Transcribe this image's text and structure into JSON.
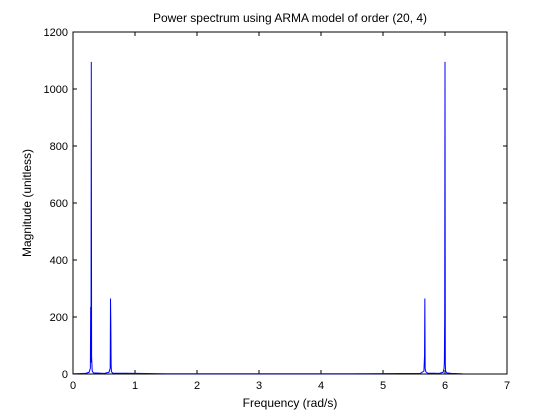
{
  "chart_data": {
    "type": "line",
    "title": "Power spectrum using ARMA model of order (20, 4)",
    "xlabel": "Frequency (rad/s)",
    "ylabel": "Magnitude (unitless)",
    "xlim": [
      0,
      7
    ],
    "ylim": [
      0,
      1200
    ],
    "xticks": [
      0,
      1,
      2,
      3,
      4,
      5,
      6,
      7
    ],
    "yticks": [
      0,
      200,
      400,
      600,
      800,
      1000,
      1200
    ],
    "grid": false,
    "series": [
      {
        "color": "#0000ff",
        "x": [
          0.0,
          0.2,
          0.26,
          0.28,
          0.285,
          0.29,
          0.295,
          0.3,
          0.31,
          0.33,
          0.5,
          0.58,
          0.6,
          0.605,
          0.61,
          0.615,
          0.62,
          0.64,
          1.5,
          3.0,
          4.5,
          5.6,
          5.66,
          5.67,
          5.675,
          5.68,
          5.69,
          5.72,
          5.9,
          5.97,
          5.985,
          5.99,
          5.995,
          6.0,
          6.005,
          6.01,
          6.03,
          6.1,
          6.28
        ],
        "y": [
          1,
          2,
          6,
          20,
          235,
          40,
          1095,
          60,
          10,
          4,
          2,
          6,
          20,
          265,
          180,
          30,
          8,
          3,
          1,
          1,
          1,
          2,
          10,
          65,
          265,
          20,
          8,
          3,
          2,
          6,
          20,
          45,
          200,
          1095,
          35,
          10,
          4,
          2,
          1
        ]
      }
    ]
  }
}
